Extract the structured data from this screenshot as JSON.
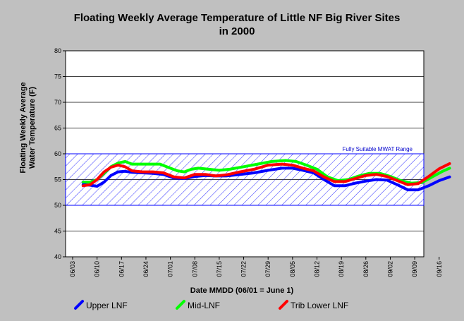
{
  "chart_data": {
    "type": "line",
    "title": "Floating Weekly Average Temperature of Little NF Big River Sites",
    "subtitle": "in 2000",
    "xlabel": "Date MMDD (06/01 = June 1)",
    "ylabel": "Floating Weekly Average Water Temperature (F)",
    "ylabel_lines": [
      "Floating Weekly Average",
      "Water Temperature (F)"
    ],
    "ylim": [
      40,
      80
    ],
    "yticks": [
      40,
      45,
      50,
      55,
      60,
      65,
      70,
      75,
      80
    ],
    "xticks": [
      "06/03",
      "06/10",
      "06/17",
      "06/24",
      "07/01",
      "07/08",
      "07/15",
      "07/22",
      "07/29",
      "08/05",
      "08/12",
      "08/19",
      "08/26",
      "09/02",
      "09/09",
      "09/16"
    ],
    "x_start_date": "06/03",
    "x_end_date": "09/25",
    "grid": true,
    "legend_position": "bottom",
    "band": {
      "label": "Fully Suitable MWAT Range",
      "ymin": 50,
      "ymax": 60,
      "color": "#0000ff"
    },
    "series": [
      {
        "name": "Mid-LNF",
        "color": "#00ff00",
        "points": [
          [
            "06/06",
            54.5
          ],
          [
            "06/08",
            54.5
          ],
          [
            "06/10",
            55.0
          ],
          [
            "06/12",
            56.2
          ],
          [
            "06/14",
            57.5
          ],
          [
            "06/16",
            58.2
          ],
          [
            "06/18",
            58.5
          ],
          [
            "06/20",
            58.0
          ],
          [
            "06/22",
            58.0
          ],
          [
            "06/25",
            58.0
          ],
          [
            "06/28",
            58.0
          ],
          [
            "07/01",
            57.2
          ],
          [
            "07/03",
            56.7
          ],
          [
            "07/05",
            56.5
          ],
          [
            "07/07",
            57.0
          ],
          [
            "07/09",
            57.2
          ],
          [
            "07/12",
            57.0
          ],
          [
            "07/15",
            56.8
          ],
          [
            "07/18",
            57.0
          ],
          [
            "07/22",
            57.5
          ],
          [
            "07/26",
            58.0
          ],
          [
            "07/30",
            58.5
          ],
          [
            "08/03",
            58.7
          ],
          [
            "08/06",
            58.5
          ],
          [
            "08/09",
            57.8
          ],
          [
            "08/12",
            57.0
          ],
          [
            "08/15",
            55.5
          ],
          [
            "08/18",
            54.8
          ],
          [
            "08/21",
            55.0
          ],
          [
            "08/24",
            55.7
          ],
          [
            "08/27",
            56.2
          ],
          [
            "08/30",
            56.2
          ],
          [
            "09/02",
            55.6
          ],
          [
            "09/05",
            54.8
          ],
          [
            "09/08",
            54.3
          ],
          [
            "09/11",
            54.4
          ],
          [
            "09/14",
            55.5
          ],
          [
            "09/17",
            56.6
          ],
          [
            "09/19",
            57.2
          ]
        ]
      },
      {
        "name": "Upper LNF",
        "color": "#0000ff",
        "points": [
          [
            "06/06",
            54.0
          ],
          [
            "06/08",
            53.9
          ],
          [
            "06/10",
            53.7
          ],
          [
            "06/12",
            54.5
          ],
          [
            "06/14",
            55.8
          ],
          [
            "06/16",
            56.5
          ],
          [
            "06/18",
            56.6
          ],
          [
            "06/20",
            56.4
          ],
          [
            "06/23",
            56.3
          ],
          [
            "06/26",
            56.2
          ],
          [
            "06/29",
            56.0
          ],
          [
            "07/02",
            55.3
          ],
          [
            "07/05",
            55.2
          ],
          [
            "07/08",
            55.6
          ],
          [
            "07/11",
            55.8
          ],
          [
            "07/14",
            55.7
          ],
          [
            "07/17",
            55.7
          ],
          [
            "07/21",
            56.0
          ],
          [
            "07/25",
            56.3
          ],
          [
            "07/29",
            56.8
          ],
          [
            "08/02",
            57.2
          ],
          [
            "08/05",
            57.2
          ],
          [
            "08/08",
            56.8
          ],
          [
            "08/11",
            56.3
          ],
          [
            "08/14",
            55.0
          ],
          [
            "08/17",
            53.8
          ],
          [
            "08/20",
            53.8
          ],
          [
            "08/23",
            54.3
          ],
          [
            "08/26",
            54.7
          ],
          [
            "08/29",
            55.0
          ],
          [
            "09/01",
            54.9
          ],
          [
            "09/04",
            54.0
          ],
          [
            "09/07",
            53.0
          ],
          [
            "09/10",
            53.0
          ],
          [
            "09/13",
            53.8
          ],
          [
            "09/16",
            54.8
          ],
          [
            "09/19",
            55.5
          ]
        ]
      },
      {
        "name": "Trib Lower LNF",
        "color": "#ff0000",
        "points": [
          [
            "06/06",
            53.8
          ],
          [
            "06/08",
            54.0
          ],
          [
            "06/10",
            55.0
          ],
          [
            "06/12",
            56.5
          ],
          [
            "06/14",
            57.4
          ],
          [
            "06/16",
            57.8
          ],
          [
            "06/18",
            57.5
          ],
          [
            "06/20",
            56.7
          ],
          [
            "06/23",
            56.5
          ],
          [
            "06/26",
            56.5
          ],
          [
            "06/29",
            56.3
          ],
          [
            "07/02",
            55.5
          ],
          [
            "07/05",
            55.3
          ],
          [
            "07/08",
            56.0
          ],
          [
            "07/11",
            56.0
          ],
          [
            "07/14",
            55.7
          ],
          [
            "07/17",
            55.9
          ],
          [
            "07/21",
            56.5
          ],
          [
            "07/25",
            57.0
          ],
          [
            "07/29",
            57.8
          ],
          [
            "08/02",
            58.0
          ],
          [
            "08/05",
            57.8
          ],
          [
            "08/08",
            57.2
          ],
          [
            "08/11",
            56.7
          ],
          [
            "08/14",
            55.5
          ],
          [
            "08/17",
            54.6
          ],
          [
            "08/20",
            54.6
          ],
          [
            "08/23",
            55.2
          ],
          [
            "08/26",
            55.8
          ],
          [
            "08/29",
            56.0
          ],
          [
            "09/01",
            55.6
          ],
          [
            "09/04",
            54.8
          ],
          [
            "09/07",
            54.0
          ],
          [
            "09/10",
            54.2
          ],
          [
            "09/13",
            55.6
          ],
          [
            "09/16",
            57.1
          ],
          [
            "09/19",
            58.1
          ]
        ]
      }
    ],
    "legend": [
      {
        "name": "Upper LNF",
        "color": "#0000ff"
      },
      {
        "name": "Mid-LNF",
        "color": "#00ff00"
      },
      {
        "name": "Trib Lower LNF",
        "color": "#ff0000"
      }
    ]
  }
}
